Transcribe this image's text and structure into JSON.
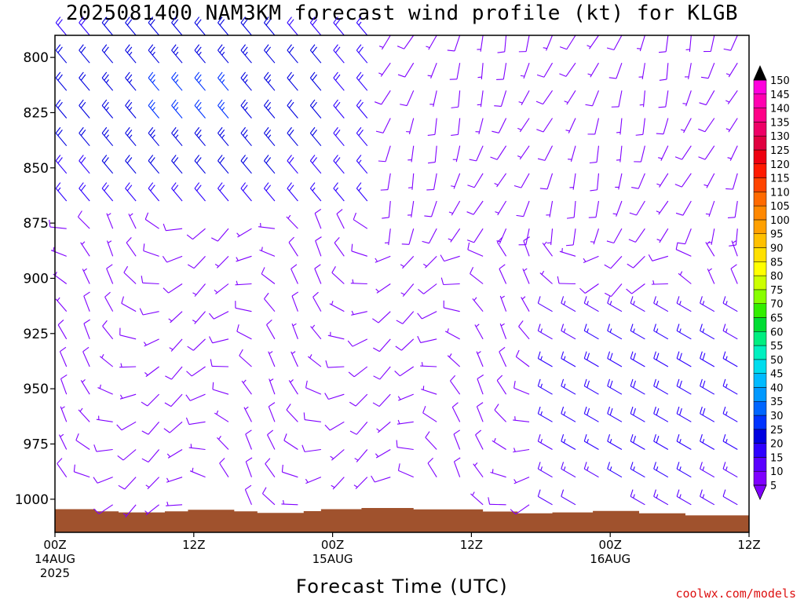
{
  "title": "2025081400 NAM3KM forecast wind profile (kt) for KLGB",
  "credit": "coolwx.com/models",
  "chart_data": {
    "type": "wind-barb-time-height",
    "title": "2025081400 NAM3KM forecast wind profile (kt) for KLGB",
    "xlabel": "Forecast Time (UTC)",
    "ylabel": "",
    "units": "kt",
    "x_range_hours": [
      0,
      60
    ],
    "y_range_hpa": [
      1015,
      790
    ],
    "x_ticks": [
      {
        "hour": 0,
        "labels": [
          "00Z",
          "14AUG",
          "2025"
        ]
      },
      {
        "hour": 12,
        "labels": [
          "12Z"
        ]
      },
      {
        "hour": 24,
        "labels": [
          "00Z",
          "15AUG"
        ]
      },
      {
        "hour": 36,
        "labels": [
          "12Z"
        ]
      },
      {
        "hour": 48,
        "labels": [
          "00Z",
          "16AUG"
        ]
      },
      {
        "hour": 60,
        "labels": [
          "12Z"
        ]
      }
    ],
    "y_ticks": [
      800,
      825,
      850,
      875,
      900,
      925,
      950,
      975,
      1000
    ],
    "colorbar": {
      "levels": [
        5,
        10,
        15,
        20,
        25,
        30,
        35,
        40,
        45,
        50,
        55,
        60,
        65,
        70,
        75,
        80,
        85,
        90,
        95,
        100,
        105,
        110,
        115,
        120,
        125,
        130,
        135,
        140,
        145,
        150
      ],
      "colors": [
        "#7f00ff",
        "#5a00ff",
        "#2e00ff",
        "#0000e0",
        "#0033ff",
        "#0066ff",
        "#0099ff",
        "#00bbff",
        "#00ddee",
        "#00f0c0",
        "#00ee80",
        "#00dd33",
        "#33ee00",
        "#88ff00",
        "#ccff00",
        "#ffff00",
        "#ffe000",
        "#ffc000",
        "#ffa000",
        "#ff8800",
        "#ff6a00",
        "#ff4400",
        "#ff1a00",
        "#ee0010",
        "#e00040",
        "#ee0066",
        "#ff0088",
        "#ff00b0",
        "#ff00dd",
        "#ff33ff"
      ]
    },
    "surface_pressure_hpa": {
      "hours": [
        0,
        3.5,
        5.5,
        9.5,
        11.5,
        15.5,
        17.5,
        21.5,
        23,
        26.5,
        31,
        37,
        40,
        43,
        46.5,
        50.5,
        54.5,
        60
      ],
      "values": [
        1004.5,
        1005.5,
        1006.0,
        1005.5,
        1004.8,
        1005.5,
        1006.2,
        1005.4,
        1004.5,
        1004.0,
        1004.6,
        1005.6,
        1006.4,
        1006.0,
        1005.3,
        1006.4,
        1007.3,
        1007.0
      ]
    },
    "wind_summary": [
      {
        "region": "0-24Z 14-15AUG, 800-860 hPa",
        "direction_from_deg": 320,
        "speed_kt": [
          20,
          25
        ]
      },
      {
        "region": "0-30Z, 870-1000 hPa",
        "direction_from_deg": 300,
        "speed_kt": [
          5,
          10
        ]
      },
      {
        "region": "30-60Z, 800-870 hPa",
        "direction_from_deg": 210,
        "speed_kt": [
          5,
          10
        ]
      },
      {
        "region": "45-60Z, 920-1000 hPa",
        "direction_from_deg": 300,
        "speed_kt": [
          15,
          20
        ]
      }
    ]
  }
}
